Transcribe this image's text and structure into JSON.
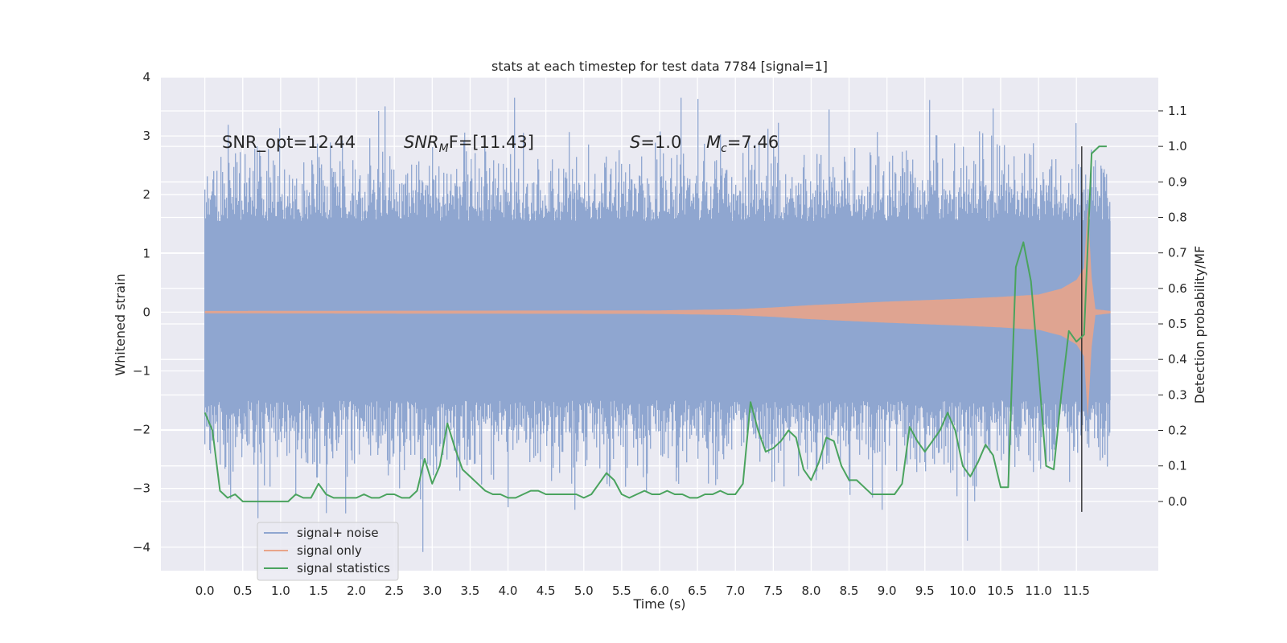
{
  "chart_data": {
    "type": "line",
    "title": "stats at each timestep for test data 7784 [signal=1]",
    "xlabel": "Time (s)",
    "ylabel": "Whitened strain",
    "y2label": "Detection probability/MF",
    "xlim": [
      -0.58,
      12.58
    ],
    "ylim": [
      -4.4,
      4.0
    ],
    "y2lim": [
      -0.195,
      1.195
    ],
    "x_ticks": [
      "0.0",
      "0.5",
      "1.0",
      "1.5",
      "2.0",
      "2.5",
      "3.0",
      "3.5",
      "4.0",
      "4.5",
      "5.0",
      "5.5",
      "6.0",
      "6.5",
      "7.0",
      "7.5",
      "8.0",
      "8.5",
      "9.0",
      "9.5",
      "10.0",
      "10.5",
      "11.0",
      "11.5"
    ],
    "y_ticks": [
      "4",
      "3",
      "2",
      "1",
      "0",
      "−1",
      "−2",
      "−3",
      "−4"
    ],
    "y2_ticks": [
      "1.1",
      "1.0",
      "0.9",
      "0.8",
      "0.7",
      "0.6",
      "0.5",
      "0.4",
      "0.3",
      "0.2",
      "0.1",
      "0.0"
    ],
    "grid": true,
    "legend_position": "lower-left",
    "annotations": {
      "snr_opt": "SNR_opt=12.44",
      "snr_mf_prefix": "SNR",
      "snr_mf_sub": "M",
      "snr_mf_suffix": "F=[11.43]",
      "s_prefix": "S",
      "s_suffix": "=1.0",
      "mc_prefix": "M",
      "mc_sub": "c",
      "mc_suffix": "=7.46"
    },
    "marker_time": 11.57,
    "series": [
      {
        "name": "signal+ noise",
        "color": "#8fa6d0",
        "t_range": [
          0.0,
          11.95
        ],
        "typical_amplitude": 1.3,
        "peak_max": 3.65,
        "peak_min": -4.1
      },
      {
        "name": "signal only",
        "color": "#e8a48a",
        "envelope": [
          [
            0.0,
            0.02
          ],
          [
            6.0,
            0.03
          ],
          [
            7.0,
            0.05
          ],
          [
            7.5,
            0.08
          ],
          [
            8.0,
            0.12
          ],
          [
            9.0,
            0.18
          ],
          [
            10.0,
            0.23
          ],
          [
            10.5,
            0.26
          ],
          [
            11.0,
            0.3
          ],
          [
            11.3,
            0.4
          ],
          [
            11.5,
            0.55
          ],
          [
            11.6,
            0.75
          ],
          [
            11.65,
            1.8
          ],
          [
            11.7,
            0.6
          ],
          [
            11.75,
            0.05
          ],
          [
            11.95,
            0.02
          ]
        ]
      },
      {
        "name": "signal statistics",
        "color": "#4aa35e",
        "x": [
          0.0,
          0.1,
          0.2,
          0.3,
          0.4,
          0.5,
          0.6,
          0.7,
          0.8,
          0.9,
          1.0,
          1.1,
          1.2,
          1.3,
          1.4,
          1.5,
          1.6,
          1.7,
          1.8,
          1.9,
          2.0,
          2.1,
          2.2,
          2.3,
          2.4,
          2.5,
          2.6,
          2.7,
          2.8,
          2.9,
          3.0,
          3.1,
          3.2,
          3.3,
          3.4,
          3.5,
          3.6,
          3.7,
          3.8,
          3.9,
          4.0,
          4.1,
          4.2,
          4.3,
          4.4,
          4.5,
          4.6,
          4.7,
          4.8,
          4.9,
          5.0,
          5.1,
          5.2,
          5.3,
          5.4,
          5.5,
          5.6,
          5.7,
          5.8,
          5.9,
          6.0,
          6.1,
          6.2,
          6.3,
          6.4,
          6.5,
          6.6,
          6.7,
          6.8,
          6.9,
          7.0,
          7.1,
          7.2,
          7.3,
          7.4,
          7.5,
          7.6,
          7.7,
          7.8,
          7.9,
          8.0,
          8.1,
          8.2,
          8.3,
          8.4,
          8.5,
          8.6,
          8.7,
          8.8,
          8.9,
          9.0,
          9.1,
          9.2,
          9.3,
          9.4,
          9.5,
          9.6,
          9.7,
          9.8,
          9.9,
          10.0,
          10.1,
          10.2,
          10.3,
          10.4,
          10.5,
          10.6,
          10.7,
          10.8,
          10.9,
          11.0,
          11.1,
          11.2,
          11.3,
          11.4,
          11.5,
          11.6,
          11.7,
          11.8,
          11.9
        ],
        "values": [
          0.25,
          0.2,
          0.03,
          0.01,
          0.02,
          0.0,
          0.0,
          0.0,
          0.0,
          0.0,
          0.0,
          0.0,
          0.02,
          0.01,
          0.01,
          0.05,
          0.02,
          0.01,
          0.01,
          0.01,
          0.01,
          0.02,
          0.01,
          0.01,
          0.02,
          0.02,
          0.01,
          0.01,
          0.03,
          0.12,
          0.05,
          0.1,
          0.22,
          0.15,
          0.09,
          0.07,
          0.05,
          0.03,
          0.02,
          0.02,
          0.01,
          0.01,
          0.02,
          0.03,
          0.03,
          0.02,
          0.02,
          0.02,
          0.02,
          0.02,
          0.01,
          0.02,
          0.05,
          0.08,
          0.06,
          0.02,
          0.01,
          0.02,
          0.03,
          0.02,
          0.02,
          0.03,
          0.02,
          0.02,
          0.01,
          0.01,
          0.02,
          0.02,
          0.03,
          0.02,
          0.02,
          0.05,
          0.28,
          0.2,
          0.14,
          0.15,
          0.17,
          0.2,
          0.18,
          0.09,
          0.06,
          0.11,
          0.18,
          0.17,
          0.1,
          0.06,
          0.06,
          0.04,
          0.02,
          0.02,
          0.02,
          0.02,
          0.05,
          0.21,
          0.17,
          0.14,
          0.17,
          0.2,
          0.25,
          0.2,
          0.1,
          0.07,
          0.11,
          0.16,
          0.13,
          0.04,
          0.04,
          0.66,
          0.73,
          0.62,
          0.37,
          0.1,
          0.09,
          0.3,
          0.48,
          0.45,
          0.47,
          0.98,
          1.0,
          1.0
        ]
      }
    ]
  }
}
